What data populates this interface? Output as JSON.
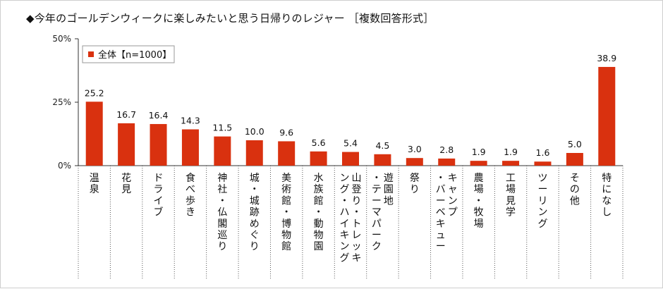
{
  "chart_data": {
    "type": "bar",
    "title": "◆今年のゴールデンウィークに楽しみたいと思う日帰りのレジャー ［複数回答形式］",
    "categories": [
      "温泉",
      "花見",
      "ドライブ",
      "食べ歩き",
      "神社・仏閣巡り",
      "城・城跡めぐり",
      "美術館・博物館",
      "水族館・動物園",
      "山登り・トレッキング・ハイキング",
      "遊園地・テーマパーク",
      "祭り",
      "キャンプ・バーベキュー",
      "農場・牧場",
      "工場見学",
      "ツーリング",
      "その他",
      "特になし"
    ],
    "category_label_columns": [
      [
        "温泉"
      ],
      [
        "花見"
      ],
      [
        "ドライブ"
      ],
      [
        "食べ歩き"
      ],
      [
        "神社・仏閣巡り"
      ],
      [
        "城・城跡めぐり"
      ],
      [
        "美術館・博物館"
      ],
      [
        "水族館・動物園"
      ],
      [
        "山登り・トレッキ",
        "ング・ハイキング"
      ],
      [
        "遊園地",
        "・テーマパーク"
      ],
      [
        "祭り"
      ],
      [
        "キャンプ",
        "・バーベキュー"
      ],
      [
        "農場・牧場"
      ],
      [
        "工場見学"
      ],
      [
        "ツーリング"
      ],
      [
        "その他"
      ],
      [
        "特になし"
      ]
    ],
    "series": [
      {
        "name": "全体【n=1000】",
        "values": [
          25.2,
          16.7,
          16.4,
          14.3,
          11.5,
          10.0,
          9.6,
          5.6,
          5.4,
          4.5,
          3.0,
          2.8,
          1.9,
          1.9,
          1.6,
          5.0,
          38.9
        ],
        "value_labels": [
          "25.2",
          "16.7",
          "16.4",
          "14.3",
          "11.5",
          "10.0",
          "9.6",
          "5.6",
          "5.4",
          "4.5",
          "3.0",
          "2.8",
          "1.9",
          "1.9",
          "1.6",
          "5.0",
          "38.9"
        ]
      }
    ],
    "ylim": [
      0,
      50
    ],
    "yticks": [
      0,
      25,
      50
    ],
    "ytick_labels": [
      "0%",
      "25%",
      "50%"
    ],
    "grid": false,
    "legend_position": "top-left",
    "bar_color": "#d9310f"
  }
}
